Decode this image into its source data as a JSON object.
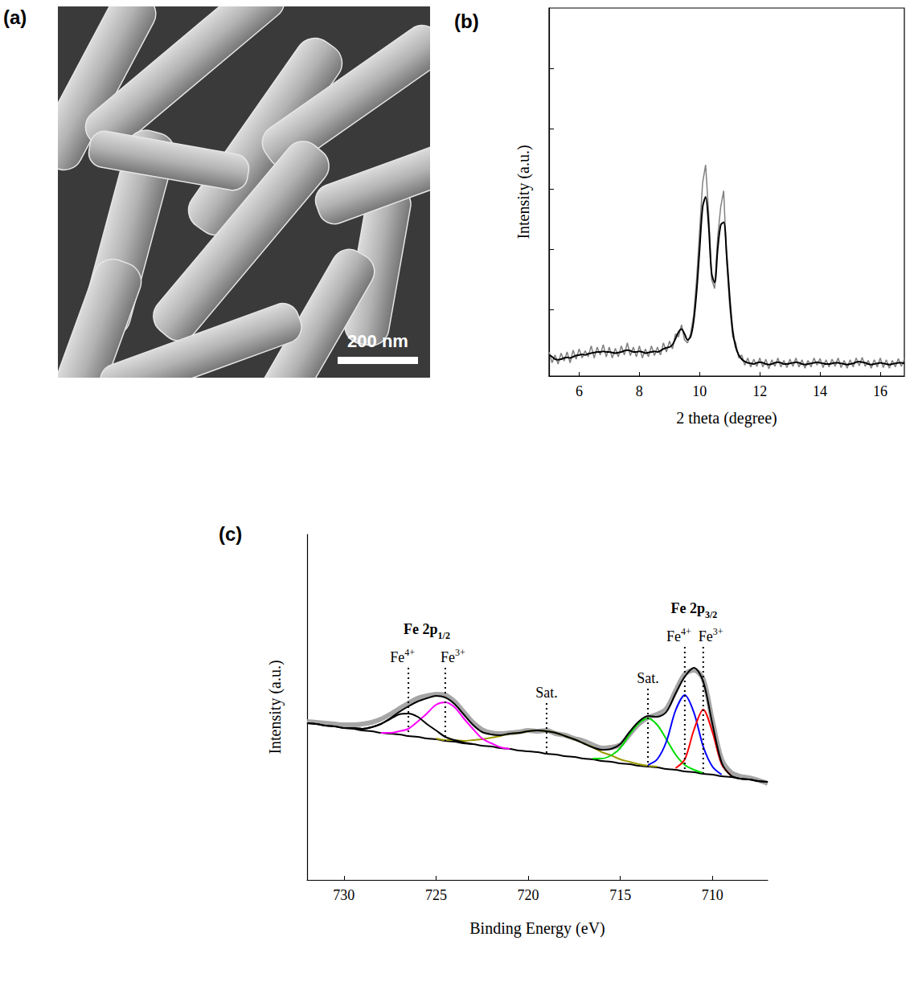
{
  "image_panel": {
    "panel": "(a)",
    "scale_bar": "200 nm"
  },
  "chart_data": [
    {
      "panel": "(b)",
      "type": "line",
      "x_label": "2 theta (degree)",
      "y_label": "Intensity (a.u.)",
      "x": [
        5,
        5.1,
        5.2,
        5.3,
        5.4,
        5.5,
        5.6,
        5.7,
        5.8,
        5.9,
        6,
        6.1,
        6.2,
        6.3,
        6.4,
        6.5,
        6.6,
        6.7,
        6.8,
        6.9,
        7,
        7.1,
        7.2,
        7.3,
        7.4,
        7.5,
        7.6,
        7.7,
        7.8,
        7.9,
        8,
        8.1,
        8.2,
        8.3,
        8.4,
        8.5,
        8.6,
        8.7,
        8.8,
        8.9,
        9,
        9.1,
        9.2,
        9.3,
        9.4,
        9.5,
        9.6,
        9.7,
        9.8,
        9.9,
        10,
        10.1,
        10.2,
        10.3,
        10.4,
        10.5,
        10.6,
        10.7,
        10.8,
        10.9,
        11,
        11.1,
        11.2,
        11.3,
        11.4,
        11.5,
        11.6,
        11.7,
        11.8,
        11.9,
        12,
        12.1,
        12.2,
        12.3,
        12.4,
        12.5,
        12.6,
        12.7,
        12.8,
        12.9,
        13,
        13.1,
        13.2,
        13.3,
        13.4,
        13.5,
        13.6,
        13.7,
        13.8,
        13.9,
        14,
        14.1,
        14.2,
        14.3,
        14.4,
        14.5,
        14.6,
        14.7,
        14.8,
        14.9,
        15,
        15.1,
        15.2,
        15.3,
        15.4,
        15.5,
        15.6,
        15.7,
        15.8,
        15.9,
        16,
        16.1,
        16.2,
        16.3,
        16.4,
        16.5,
        16.6,
        16.7,
        16.8
      ],
      "series": [
        {
          "color": "#808080",
          "values": [
            0.3,
            0.12,
            0.25,
            0.1,
            0.28,
            0.15,
            0.3,
            0.12,
            0.33,
            0.18,
            0.35,
            0.2,
            0.32,
            0.22,
            0.4,
            0.2,
            0.38,
            0.25,
            0.42,
            0.22,
            0.38,
            0.2,
            0.36,
            0.22,
            0.4,
            0.25,
            0.45,
            0.24,
            0.38,
            0.22,
            0.4,
            0.2,
            0.35,
            0.22,
            0.4,
            0.24,
            0.38,
            0.25,
            0.45,
            0.3,
            0.48,
            0.35,
            0.6,
            0.55,
            0.75,
            0.5,
            0.45,
            0.6,
            0.9,
            1.5,
            2.3,
            3.1,
            3.4,
            2.6,
            1.5,
            1.35,
            2.2,
            2.7,
            2.97,
            1.8,
            1.05,
            0.55,
            0.45,
            0.2,
            0.25,
            0.08,
            0.2,
            0.05,
            0.18,
            0.06,
            0.2,
            0.05,
            0.18,
            0.02,
            0.17,
            0.06,
            0.2,
            0.05,
            0.16,
            0.04,
            0.18,
            0.06,
            0.2,
            0.05,
            0.17,
            0.03,
            0.16,
            0.05,
            0.2,
            0.08,
            0.19,
            0.04,
            0.17,
            0.05,
            0.18,
            0.06,
            0.2,
            0.04,
            0.16,
            0.03,
            0.17,
            0.05,
            0.2,
            0.07,
            0.21,
            0.06,
            0.16,
            0.03,
            0.17,
            0.05,
            0.2,
            0.04,
            0.17,
            0.03,
            0.16,
            0.05,
            0.19,
            0.06,
            0.18
          ]
        },
        {
          "color": "#000000",
          "values": [
            0.25,
            0.22,
            0.18,
            0.17,
            0.18,
            0.2,
            0.21,
            0.2,
            0.22,
            0.24,
            0.25,
            0.26,
            0.25,
            0.27,
            0.28,
            0.29,
            0.3,
            0.3,
            0.31,
            0.3,
            0.3,
            0.29,
            0.28,
            0.29,
            0.3,
            0.32,
            0.33,
            0.32,
            0.3,
            0.3,
            0.31,
            0.3,
            0.28,
            0.29,
            0.3,
            0.31,
            0.3,
            0.32,
            0.35,
            0.37,
            0.38,
            0.42,
            0.52,
            0.63,
            0.68,
            0.6,
            0.5,
            0.55,
            0.8,
            1.3,
            2.0,
            2.7,
            2.87,
            2.4,
            1.6,
            1.45,
            2.0,
            2.4,
            2.45,
            1.9,
            1.2,
            0.65,
            0.38,
            0.25,
            0.18,
            0.14,
            0.12,
            0.11,
            0.1,
            0.12,
            0.13,
            0.12,
            0.1,
            0.09,
            0.1,
            0.12,
            0.13,
            0.12,
            0.1,
            0.1,
            0.11,
            0.12,
            0.13,
            0.12,
            0.1,
            0.09,
            0.1,
            0.11,
            0.12,
            0.13,
            0.12,
            0.11,
            0.1,
            0.1,
            0.11,
            0.12,
            0.12,
            0.11,
            0.1,
            0.09,
            0.1,
            0.11,
            0.13,
            0.14,
            0.13,
            0.12,
            0.1,
            0.09,
            0.1,
            0.11,
            0.12,
            0.11,
            0.1,
            0.09,
            0.1,
            0.11,
            0.12,
            0.12,
            0.11
          ]
        }
      ],
      "xlim": [
        5,
        16.8
      ],
      "xticks": [
        6,
        8,
        10,
        12,
        14,
        16
      ],
      "ylim": [
        -0.1,
        6
      ],
      "yticks": [
        1,
        2,
        3,
        4,
        5
      ],
      "tick_labels": "x",
      "grid": false
    },
    {
      "panel": "(c)",
      "type": "line",
      "x_label": "Binding Energy (eV)",
      "y_label": "Intensity (a.u.)",
      "x": [
        707,
        707.5,
        708,
        708.5,
        709,
        709.5,
        710,
        710.5,
        711,
        711.5,
        712,
        712.5,
        713,
        713.5,
        714,
        714.5,
        715,
        715.5,
        716,
        716.5,
        717,
        717.5,
        718,
        718.5,
        719,
        719.5,
        720,
        720.5,
        721,
        721.5,
        722,
        722.5,
        723,
        723.5,
        724,
        724.5,
        725,
        725.5,
        726,
        726.5,
        727,
        727.5,
        728,
        728.5,
        729,
        729.5,
        730,
        730.5,
        731,
        731.5,
        732
      ],
      "series": [
        {
          "color": "#a6a6a6",
          "values": [
            12.0,
            12.4,
            12.7,
            12.9,
            13.4,
            15.0,
            19.8,
            25.0,
            26.1,
            25.6,
            23.5,
            21.3,
            20.6,
            20.2,
            19.4,
            18.1,
            16.8,
            16.5,
            16.4,
            16.8,
            17.3,
            17.6,
            18.0,
            18.2,
            18.6,
            18.5,
            18.6,
            18.4,
            18.3,
            18.2,
            18.3,
            18.7,
            19.6,
            20.9,
            22.2,
            23.0,
            23.1,
            22.9,
            22.6,
            22.0,
            21.3,
            20.6,
            20.0,
            19.6,
            19.4,
            19.3,
            19.3,
            19.4,
            19.5,
            19.6,
            19.7
          ]
        },
        {
          "color": "#000000",
          "values": [
            12.2,
            12.3,
            12.5,
            12.6,
            12.8,
            12.9,
            13.1,
            13.2,
            13.4,
            13.5,
            13.7,
            13.8,
            14.0,
            14.1,
            14.2,
            14.4,
            14.5,
            14.7,
            14.8,
            15.0,
            15.1,
            15.3,
            15.4,
            15.6,
            15.7,
            15.9,
            16.0,
            16.1,
            16.3,
            16.4,
            16.6,
            16.7,
            16.9,
            17.0,
            17.2,
            17.3,
            17.5,
            17.6,
            17.8,
            17.9,
            18.1,
            18.2,
            18.3,
            18.5,
            18.6,
            18.8,
            18.9,
            19.1,
            19.2,
            19.4,
            19.5
          ]
        },
        {
          "color": "#999900",
          "x": [
            713,
            713.5,
            714,
            714.5,
            715,
            715.5,
            716,
            716.5,
            717,
            717.5,
            718,
            718.5,
            719,
            719.5,
            720,
            720.5,
            721,
            721.5,
            722,
            722.5,
            723,
            723.5,
            724,
            724.5,
            725
          ],
          "values": [
            14.1,
            14.2,
            14.4,
            14.7,
            15.0,
            15.5,
            15.9,
            16.5,
            17.0,
            17.5,
            17.9,
            18.3,
            18.5,
            18.6,
            18.5,
            18.3,
            18.2,
            17.9,
            17.7,
            17.5,
            17.4,
            17.3,
            17.4,
            17.4,
            17.6
          ]
        },
        {
          "color": "#00dd00",
          "x": [
            710.5,
            711,
            711.5,
            712,
            712.5,
            713,
            713.5,
            714,
            714.5,
            715,
            715.5,
            716,
            716.5
          ],
          "values": [
            13.3,
            13.7,
            14.3,
            15.6,
            17.5,
            19.3,
            20.1,
            19.5,
            18.1,
            16.4,
            15.5,
            15.1,
            15.1
          ]
        },
        {
          "color": "#0000ff",
          "x": [
            709.5,
            710,
            710.5,
            711,
            711.5,
            712,
            712.5,
            713,
            713.5
          ],
          "values": [
            13.1,
            14.1,
            16.6,
            20.8,
            23.0,
            21.1,
            17.2,
            15.0,
            14.3
          ]
        },
        {
          "color": "#ff0000",
          "x": [
            709,
            709.5,
            710,
            710.5,
            711,
            711.5,
            712
          ],
          "values": [
            13.0,
            14.4,
            18.4,
            21.2,
            18.7,
            15.0,
            13.9
          ]
        },
        {
          "color": "#ff00ff",
          "x": [
            721,
            721.5,
            722,
            722.5,
            723,
            723.5,
            724,
            724.5,
            725,
            725.5,
            726,
            726.5,
            727,
            727.5,
            728
          ],
          "values": [
            16.3,
            16.5,
            17.0,
            17.6,
            18.8,
            20.1,
            21.5,
            22.1,
            21.8,
            20.7,
            19.7,
            18.8,
            18.5,
            18.3,
            18.3
          ]
        },
        {
          "color": "#000000",
          "x": [
            723,
            723.5,
            724,
            724.5,
            725,
            725.5,
            726,
            726.5,
            727,
            727.5,
            728,
            728.5,
            729,
            729.5,
            730
          ],
          "values": [
            16.9,
            17.1,
            17.4,
            17.8,
            18.6,
            19.4,
            20.3,
            20.7,
            20.6,
            20.0,
            19.4,
            19.0,
            18.8,
            18.9,
            18.9
          ]
        },
        {
          "color": "#000000",
          "values": [
            12.2,
            12.3,
            12.5,
            12.6,
            13.0,
            14.6,
            19.4,
            24.7,
            26.4,
            25.3,
            23.2,
            20.9,
            20.3,
            20.4,
            19.7,
            18.4,
            16.9,
            16.3,
            16.2,
            16.5,
            17.0,
            17.5,
            17.9,
            18.3,
            18.5,
            18.6,
            18.5,
            18.3,
            18.2,
            18.0,
            18.1,
            18.4,
            19.3,
            20.6,
            21.9,
            22.7,
            22.9,
            22.6,
            22.2,
            21.6,
            20.9,
            20.1,
            19.4,
            19.0,
            18.8,
            18.9,
            18.9,
            19.1,
            19.2,
            19.4,
            19.5
          ]
        }
      ],
      "annotations": [
        {
          "label": {
            "text": "Fe 2p",
            "sub": "1/2"
          },
          "peaks": [
            {
              "text": "Fe",
              "sup": "4+",
              "x": 726.5
            },
            {
              "text": "Fe",
              "sup": "3+",
              "x": 724.5
            }
          ]
        },
        {
          "peaks": [
            {
              "text": "Sat.",
              "x": 719
            }
          ]
        },
        {
          "peaks": [
            {
              "text": "Sat.",
              "x": 713.5
            }
          ]
        },
        {
          "label": {
            "text": "Fe 2p",
            "sub": "3/2"
          },
          "peaks": [
            {
              "text": "Fe",
              "sup": "4+",
              "x": 711.5
            },
            {
              "text": "Fe",
              "sup": "3+",
              "x": 710.5
            }
          ]
        }
      ],
      "xlim": [
        732,
        707
      ],
      "xticks": [
        710,
        715,
        720,
        725,
        730
      ],
      "ylim": [
        0,
        43
      ],
      "tick_labels": "x",
      "grid": false
    }
  ]
}
